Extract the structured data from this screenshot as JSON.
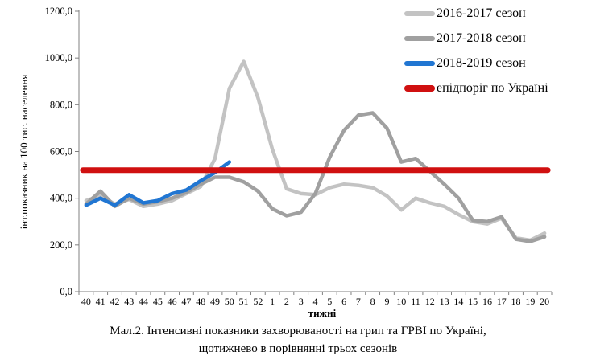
{
  "figure": {
    "caption_line1": "Мал.2. Інтенсивні показники захворюваності на грип та ГРВІ по Україні,",
    "caption_line2": "щотижнево в порівнянні трьох сезонів"
  },
  "chart_data": {
    "type": "line",
    "title": "",
    "xlabel": "тижні",
    "ylabel": "інт.показник на 100 тис. населення",
    "ylim": [
      0,
      1200
    ],
    "ytick_values": [
      0,
      200,
      400,
      600,
      800,
      1000,
      1200
    ],
    "ytick_labels": [
      "0,0",
      "200,0",
      "400,0",
      "600,0",
      "800,0",
      "1000,0",
      "1200,0"
    ],
    "grid": false,
    "legend_position": "top-right",
    "categories": [
      "40",
      "41",
      "42",
      "43",
      "44",
      "45",
      "46",
      "47",
      "48",
      "49",
      "50",
      "51",
      "52",
      "1",
      "2",
      "3",
      "4",
      "5",
      "6",
      "7",
      "8",
      "9",
      "10",
      "11",
      "12",
      "13",
      "14",
      "15",
      "16",
      "17",
      "18",
      "19",
      "20"
    ],
    "series": [
      {
        "name": "2016-2017 сезон",
        "color": "#c3c3c3",
        "line_width": 4.5,
        "values": [
          390,
          410,
          375,
          395,
          365,
          375,
          390,
          420,
          450,
          570,
          870,
          985,
          830,
          610,
          440,
          420,
          415,
          445,
          460,
          455,
          445,
          410,
          350,
          400,
          380,
          365,
          330,
          300,
          290,
          315,
          230,
          220,
          250
        ]
      },
      {
        "name": "2017-2018 сезон",
        "color": "#a0a0a0",
        "line_width": 4.5,
        "values": [
          375,
          430,
          365,
          400,
          375,
          385,
          400,
          425,
          460,
          490,
          490,
          470,
          430,
          355,
          325,
          340,
          420,
          575,
          690,
          755,
          765,
          700,
          555,
          570,
          515,
          460,
          400,
          305,
          300,
          320,
          225,
          215,
          235
        ]
      },
      {
        "name": "2018-2019 сезон",
        "color": "#2176d2",
        "line_width": 4.5,
        "values": [
          370,
          400,
          370,
          415,
          380,
          390,
          420,
          435,
          475,
          510,
          555
        ]
      },
      {
        "name": "епідпоріг по Україні",
        "color": "#d01010",
        "line_width": 7,
        "threshold": 520
      }
    ]
  }
}
